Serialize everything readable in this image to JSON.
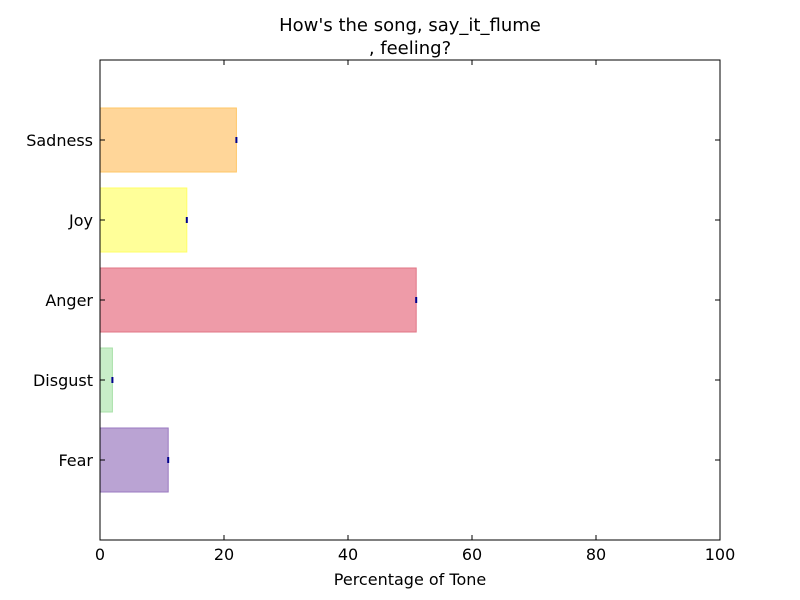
{
  "chart_data": {
    "type": "bar",
    "orientation": "horizontal",
    "title_line1": "How's the song, say_it_flume",
    "title_line2": ", feeling?",
    "xlabel": "Percentage of Tone",
    "ylabel": "",
    "xlim": [
      0,
      100
    ],
    "xticks": [
      "0",
      "20",
      "40",
      "60",
      "80",
      "100"
    ],
    "categories": [
      "Sadness",
      "Joy",
      "Anger",
      "Disgust",
      "Fear"
    ],
    "values": [
      22,
      14,
      51,
      2,
      11
    ],
    "colors": [
      "#ffd699",
      "#ffff99",
      "#ee9ba8",
      "#c8eec8",
      "#baa3d3"
    ],
    "edge_colors": [
      "#ffc766",
      "#ffff66",
      "#e07585",
      "#a8e0a8",
      "#9a78c0"
    ],
    "grid": false,
    "legend": "none"
  }
}
